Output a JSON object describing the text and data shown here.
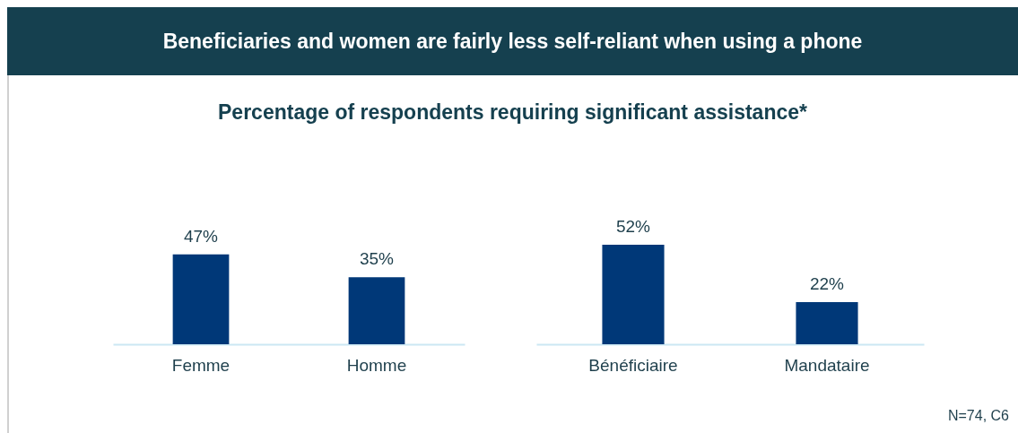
{
  "chart_data": [
    {
      "type": "bar",
      "title": "Beneficiaries and women are fairly less self-reliant when using a phone",
      "subtitle": "Percentage of respondents requiring significant assistance*",
      "categories": [
        "Femme",
        "Homme"
      ],
      "values": [
        47,
        35
      ],
      "value_labels": [
        "47%",
        "35%"
      ],
      "color": "#003878"
    },
    {
      "type": "bar",
      "categories": [
        "Bénéficiaire",
        "Mandataire"
      ],
      "values": [
        52,
        22
      ],
      "value_labels": [
        "52%",
        "22%"
      ],
      "color": "#003878",
      "annotations": [
        "N=74, C6"
      ]
    }
  ]
}
